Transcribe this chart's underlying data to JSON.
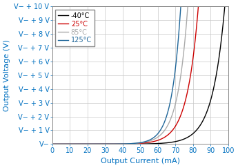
{
  "title": "",
  "xlabel": "Output Current (mA)",
  "ylabel": "Output Voltage (V)",
  "xlim": [
    0,
    100
  ],
  "ylim": [
    0,
    10
  ],
  "ytick_labels": [
    "V−",
    "V− + 1 V",
    "V− + 2 V",
    "V− + 3 V",
    "V− + 4 V",
    "V− + 5 V",
    "V− + 6 V",
    "V− + 7 V",
    "V− + 8 V",
    "V− + 9 V",
    "V− + 10 V"
  ],
  "ytick_values": [
    0,
    1,
    2,
    3,
    4,
    5,
    6,
    7,
    8,
    9,
    10
  ],
  "xtick_values": [
    0,
    10,
    20,
    30,
    40,
    50,
    60,
    70,
    80,
    90,
    100
  ],
  "legend_labels": [
    "-40°C",
    "25°C",
    "85°C",
    "125°C"
  ],
  "line_colors": [
    "#000000",
    "#cc0000",
    "#aaaaaa",
    "#1f6699"
  ],
  "background_color": "#ffffff",
  "grid_color": "#c8c8c8",
  "label_color": "#0070c0",
  "xlabel_fontsize": 8,
  "ylabel_fontsize": 8,
  "tick_fontsize": 7,
  "legend_fontsize": 7,
  "curves": {
    "m40": {
      "x_knee": 98,
      "alpha": 14.0,
      "x_end": 100
    },
    "p25": {
      "x_knee": 83,
      "alpha": 13.0,
      "x_end": 84
    },
    "p85": {
      "x_knee": 77,
      "alpha": 13.5,
      "x_end": 79
    },
    "p125": {
      "x_knee": 73,
      "alpha": 14.5,
      "x_end": 76
    }
  }
}
